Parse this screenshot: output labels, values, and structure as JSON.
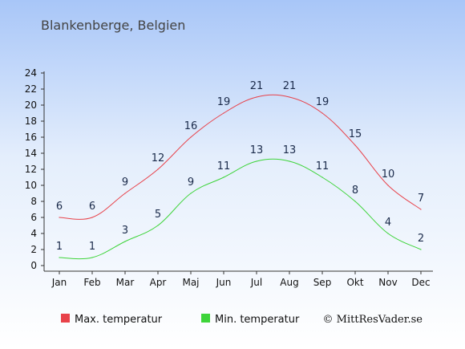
{
  "colors": {
    "bg_top": "#a8c6f8",
    "bg_bottom": "#ffffff",
    "max_series": "#e8424a",
    "min_series": "#3ed43a",
    "label_color": "#1a2a4a"
  },
  "chart_data": {
    "type": "line",
    "title": "Blankenberge, Belgien",
    "categories": [
      "Jan",
      "Feb",
      "Mar",
      "Apr",
      "Maj",
      "Jun",
      "Jul",
      "Aug",
      "Sep",
      "Okt",
      "Nov",
      "Dec"
    ],
    "ylim": [
      0,
      24
    ],
    "yticks": [
      0,
      2,
      4,
      6,
      8,
      10,
      12,
      14,
      16,
      18,
      20,
      22,
      24
    ],
    "grid": false,
    "legend_position": "bottom",
    "series": [
      {
        "name": "Max. temperatur",
        "values": [
          6,
          6,
          9,
          12,
          16,
          19,
          21,
          21,
          19,
          15,
          10,
          7
        ]
      },
      {
        "name": "Min. temperatur",
        "values": [
          1,
          1,
          3,
          5,
          9,
          11,
          13,
          13,
          11,
          8,
          4,
          2
        ]
      }
    ]
  },
  "credit": "© MittResVader.se"
}
